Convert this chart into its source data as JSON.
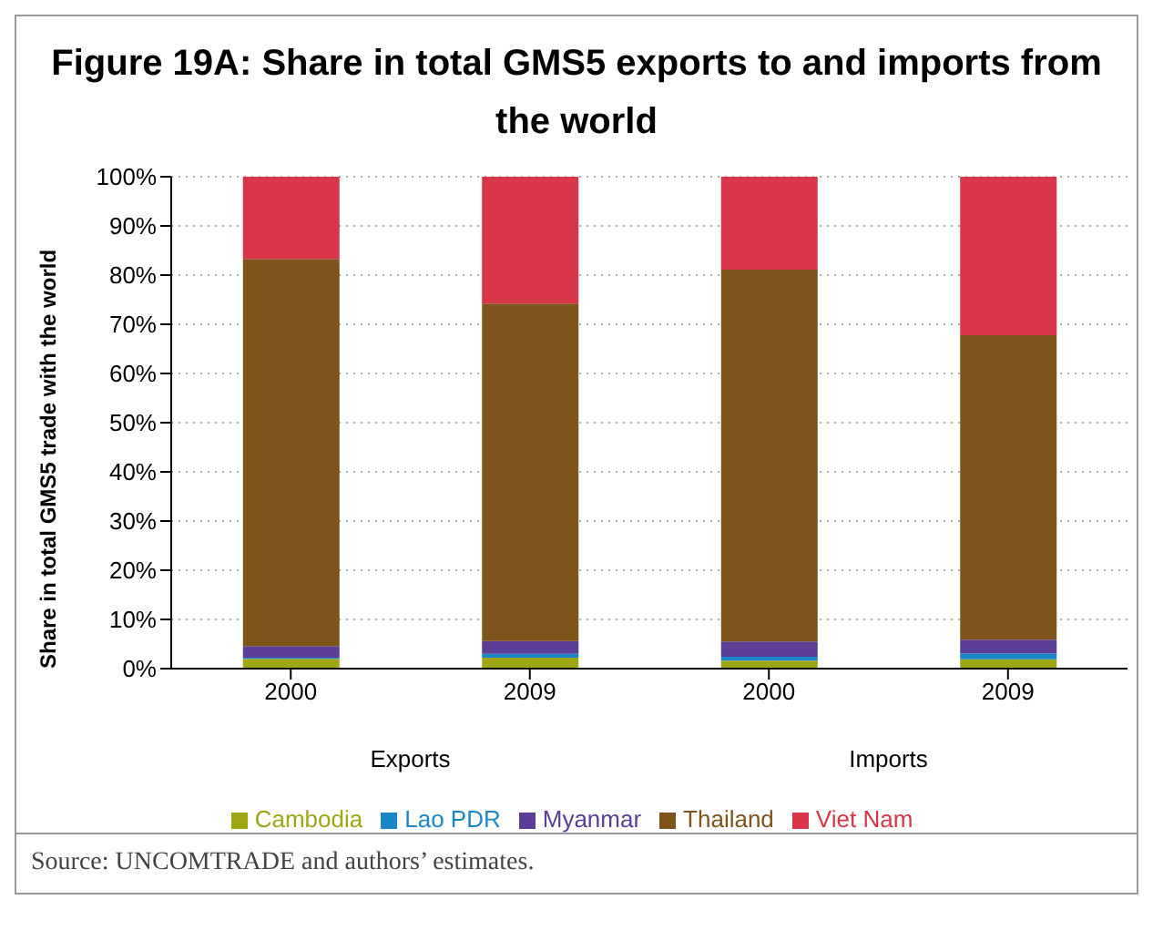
{
  "chart_data": {
    "type": "bar",
    "stacked": true,
    "title": "Figure 19A: Share in total GMS5 exports to and imports from the world",
    "ylabel": "Share in total GMS5 trade with the world",
    "categories": [
      "2000",
      "2009",
      "2000",
      "2009"
    ],
    "series": [
      {
        "name": "Cambodia",
        "color": "#9ea614",
        "values": [
          2.0,
          2.2,
          1.6,
          1.9
        ]
      },
      {
        "name": "Lao PDR",
        "color": "#1a86c8",
        "values": [
          0.2,
          0.8,
          0.8,
          1.2
        ]
      },
      {
        "name": "Myanmar",
        "color": "#5b3e96",
        "values": [
          2.4,
          2.6,
          3.1,
          2.8
        ]
      },
      {
        "name": "Thailand",
        "color": "#7f541b",
        "values": [
          78.7,
          68.6,
          75.6,
          61.9
        ]
      },
      {
        "name": "Viet Nam",
        "color": "#d83548",
        "values": [
          16.7,
          25.8,
          18.9,
          32.2
        ]
      }
    ],
    "ylim": [
      0,
      100
    ],
    "yticks": [
      {
        "value": 0,
        "label": "0%"
      },
      {
        "value": 10,
        "label": "10%"
      },
      {
        "value": 20,
        "label": "20%"
      },
      {
        "value": 30,
        "label": "30%"
      },
      {
        "value": 40,
        "label": "40%"
      },
      {
        "value": 50,
        "label": "50%"
      },
      {
        "value": 60,
        "label": "60%"
      },
      {
        "value": 70,
        "label": "70%"
      },
      {
        "value": 80,
        "label": "80%"
      },
      {
        "value": 90,
        "label": "90%"
      },
      {
        "value": 100,
        "label": "100%"
      }
    ],
    "grid": "y",
    "legend": "bottom",
    "annotations": [
      "Exports",
      "Imports",
      "Source: UNCOMTRADE and authors’ estimates."
    ]
  }
}
